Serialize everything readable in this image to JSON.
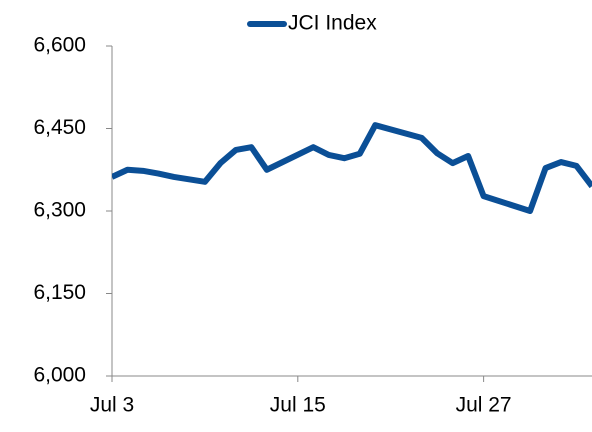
{
  "chart_data": {
    "type": "line",
    "x": [
      "Jul 3",
      "Jul 4",
      "Jul 5",
      "Jul 6",
      "Jul 7",
      "Jul 9",
      "Jul 10",
      "Jul 11",
      "Jul 12",
      "Jul 13",
      "Jul 16",
      "Jul 17",
      "Jul 18",
      "Jul 19",
      "Jul 20",
      "Jul 23",
      "Jul 24",
      "Jul 25",
      "Jul 26",
      "Jul 27",
      "Jul 30",
      "Jul 31",
      "Aug 1",
      "Aug 2",
      "Aug 3"
    ],
    "series": [
      {
        "name": "JCI Index",
        "color": "#0b4f96",
        "values": [
          6362,
          6375,
          6373,
          6368,
          6362,
          6353,
          6387,
          6411,
          6416,
          6375,
          6416,
          6402,
          6396,
          6404,
          6456,
          6433,
          6405,
          6387,
          6400,
          6327,
          6300,
          6378,
          6389,
          6382,
          6345
        ]
      }
    ],
    "xlim": [
      "Jul 3",
      "Aug 3"
    ],
    "xticks": [
      "Jul 3",
      "Jul 15",
      "Jul 27"
    ],
    "ylim": [
      6000,
      6600
    ],
    "yticks": [
      {
        "value": 6000,
        "label": "6,000"
      },
      {
        "value": 6150,
        "label": "6,150"
      },
      {
        "value": 6300,
        "label": "6,300"
      },
      {
        "value": 6450,
        "label": "6,450"
      },
      {
        "value": 6600,
        "label": "6,600"
      }
    ],
    "legend": "top"
  }
}
